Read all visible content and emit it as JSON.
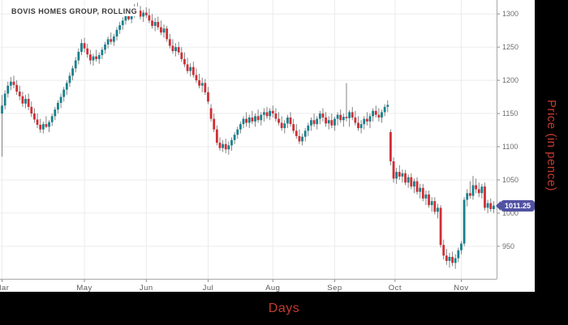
{
  "title": "BOVIS HOMES GROUP, ROLLING",
  "axis_titles": {
    "x": "Days",
    "y": "Price (in pence)"
  },
  "last_price_label": "1011.25",
  "colors": {
    "up": "#17818D",
    "down": "#D22D34",
    "wick": "#777777",
    "grid": "#ECECEC",
    "axis_border": "#A8A8A8",
    "tick": "#8A8A8A",
    "y_tick_text": "#6E6E6E",
    "x_tick_text": "#5A5A5A",
    "badge": "#5152A2",
    "axis_title_text": "#C43A30",
    "title_text": "#383838",
    "panel_bg": "#FFFFFF",
    "outer_bg": "#000000"
  },
  "chart_data": {
    "type": "candlestick",
    "title": "BOVIS HOMES GROUP, ROLLING",
    "xlabel": "Days",
    "ylabel": "Price (in pence)",
    "last_price": 1011.25,
    "ylim": [
      901,
      1321
    ],
    "y_ticks": [
      950,
      1000,
      1050,
      1100,
      1150,
      1200,
      1250,
      1300
    ],
    "x_ticks": [
      {
        "label": "Mar",
        "i": 0
      },
      {
        "label": "May",
        "i": 28
      },
      {
        "label": "Jun",
        "i": 49
      },
      {
        "label": "Jul",
        "i": 70
      },
      {
        "label": "Aug",
        "i": 92
      },
      {
        "label": "Sep",
        "i": 113
      },
      {
        "label": "Oct",
        "i": 133.5
      },
      {
        "label": "Nov",
        "i": 156
      }
    ],
    "grid": true,
    "ohlc": [
      [
        1150,
        1178,
        1085,
        1162
      ],
      [
        1162,
        1185,
        1156,
        1180
      ],
      [
        1180,
        1198,
        1174,
        1192
      ],
      [
        1192,
        1205,
        1185,
        1198
      ],
      [
        1198,
        1207,
        1188,
        1193
      ],
      [
        1193,
        1200,
        1178,
        1183
      ],
      [
        1183,
        1192,
        1170,
        1176
      ],
      [
        1176,
        1183,
        1160,
        1165
      ],
      [
        1165,
        1178,
        1158,
        1172
      ],
      [
        1172,
        1180,
        1155,
        1160
      ],
      [
        1160,
        1168,
        1145,
        1150
      ],
      [
        1150,
        1158,
        1136,
        1141
      ],
      [
        1141,
        1150,
        1128,
        1133
      ],
      [
        1133,
        1142,
        1121,
        1126
      ],
      [
        1126,
        1138,
        1120,
        1134
      ],
      [
        1134,
        1146,
        1128,
        1130
      ],
      [
        1130,
        1140,
        1122,
        1137
      ],
      [
        1137,
        1150,
        1131,
        1146
      ],
      [
        1146,
        1160,
        1140,
        1156
      ],
      [
        1156,
        1170,
        1150,
        1166
      ],
      [
        1166,
        1180,
        1158,
        1175
      ],
      [
        1175,
        1190,
        1168,
        1186
      ],
      [
        1186,
        1200,
        1178,
        1196
      ],
      [
        1196,
        1212,
        1190,
        1207
      ],
      [
        1207,
        1222,
        1200,
        1218
      ],
      [
        1218,
        1235,
        1212,
        1230
      ],
      [
        1230,
        1248,
        1224,
        1243
      ],
      [
        1243,
        1262,
        1238,
        1256
      ],
      [
        1256,
        1264,
        1242,
        1248
      ],
      [
        1248,
        1255,
        1234,
        1239
      ],
      [
        1239,
        1246,
        1224,
        1230
      ],
      [
        1230,
        1240,
        1222,
        1236
      ],
      [
        1236,
        1246,
        1228,
        1232
      ],
      [
        1232,
        1242,
        1225,
        1238
      ],
      [
        1238,
        1250,
        1232,
        1246
      ],
      [
        1246,
        1258,
        1240,
        1254
      ],
      [
        1254,
        1266,
        1248,
        1262
      ],
      [
        1262,
        1272,
        1254,
        1258
      ],
      [
        1258,
        1270,
        1252,
        1266
      ],
      [
        1266,
        1280,
        1260,
        1276
      ],
      [
        1276,
        1288,
        1270,
        1283
      ],
      [
        1283,
        1295,
        1276,
        1290
      ],
      [
        1290,
        1302,
        1284,
        1297
      ],
      [
        1297,
        1308,
        1290,
        1292
      ],
      [
        1292,
        1304,
        1286,
        1300
      ],
      [
        1300,
        1315,
        1294,
        1310
      ],
      [
        1310,
        1317,
        1300,
        1305
      ],
      [
        1305,
        1312,
        1292,
        1296
      ],
      [
        1296,
        1306,
        1288,
        1302
      ],
      [
        1302,
        1310,
        1294,
        1298
      ],
      [
        1298,
        1308,
        1286,
        1290
      ],
      [
        1290,
        1300,
        1278,
        1282
      ],
      [
        1282,
        1294,
        1274,
        1288
      ],
      [
        1288,
        1296,
        1276,
        1280
      ],
      [
        1280,
        1290,
        1268,
        1272
      ],
      [
        1272,
        1284,
        1264,
        1278
      ],
      [
        1278,
        1282,
        1258,
        1262
      ],
      [
        1262,
        1270,
        1248,
        1252
      ],
      [
        1252,
        1262,
        1240,
        1244
      ],
      [
        1244,
        1256,
        1236,
        1250
      ],
      [
        1250,
        1258,
        1238,
        1242
      ],
      [
        1242,
        1250,
        1228,
        1232
      ],
      [
        1232,
        1242,
        1220,
        1224
      ],
      [
        1224,
        1234,
        1210,
        1214
      ],
      [
        1214,
        1226,
        1206,
        1220
      ],
      [
        1220,
        1228,
        1204,
        1208
      ],
      [
        1208,
        1218,
        1196,
        1200
      ],
      [
        1200,
        1210,
        1188,
        1192
      ],
      [
        1192,
        1204,
        1182,
        1196
      ],
      [
        1196,
        1202,
        1178,
        1182
      ],
      [
        1182,
        1190,
        1164,
        1168
      ],
      [
        1158,
        1164,
        1138,
        1142
      ],
      [
        1142,
        1150,
        1122,
        1126
      ],
      [
        1126,
        1132,
        1102,
        1106
      ],
      [
        1106,
        1114,
        1094,
        1098
      ],
      [
        1098,
        1110,
        1092,
        1104
      ],
      [
        1104,
        1112,
        1090,
        1096
      ],
      [
        1096,
        1108,
        1088,
        1102
      ],
      [
        1102,
        1114,
        1094,
        1110
      ],
      [
        1110,
        1122,
        1104,
        1118
      ],
      [
        1118,
        1130,
        1112,
        1126
      ],
      [
        1126,
        1138,
        1120,
        1134
      ],
      [
        1134,
        1146,
        1128,
        1142
      ],
      [
        1142,
        1152,
        1130,
        1136
      ],
      [
        1136,
        1148,
        1128,
        1144
      ],
      [
        1144,
        1154,
        1134,
        1138
      ],
      [
        1138,
        1150,
        1130,
        1146
      ],
      [
        1146,
        1156,
        1136,
        1140
      ],
      [
        1140,
        1152,
        1132,
        1148
      ],
      [
        1148,
        1158,
        1138,
        1152
      ],
      [
        1152,
        1160,
        1142,
        1146
      ],
      [
        1146,
        1158,
        1140,
        1154
      ],
      [
        1154,
        1162,
        1144,
        1150
      ],
      [
        1150,
        1158,
        1138,
        1142
      ],
      [
        1142,
        1152,
        1132,
        1136
      ],
      [
        1136,
        1146,
        1124,
        1128
      ],
      [
        1128,
        1140,
        1120,
        1135
      ],
      [
        1135,
        1148,
        1128,
        1144
      ],
      [
        1144,
        1152,
        1130,
        1134
      ],
      [
        1134,
        1142,
        1120,
        1124
      ],
      [
        1124,
        1134,
        1112,
        1116
      ],
      [
        1116,
        1126,
        1104,
        1108
      ],
      [
        1108,
        1120,
        1102,
        1115
      ],
      [
        1115,
        1128,
        1108,
        1124
      ],
      [
        1124,
        1136,
        1116,
        1132
      ],
      [
        1132,
        1144,
        1124,
        1140
      ],
      [
        1140,
        1150,
        1130,
        1134
      ],
      [
        1134,
        1146,
        1126,
        1142
      ],
      [
        1142,
        1154,
        1134,
        1150
      ],
      [
        1150,
        1158,
        1138,
        1144
      ],
      [
        1144,
        1152,
        1130,
        1135
      ],
      [
        1135,
        1146,
        1126,
        1140
      ],
      [
        1140,
        1150,
        1128,
        1132
      ],
      [
        1132,
        1145,
        1124,
        1142
      ],
      [
        1142,
        1152,
        1132,
        1148
      ],
      [
        1148,
        1156,
        1136,
        1140
      ],
      [
        1140,
        1150,
        1130,
        1145
      ],
      [
        1145,
        1196,
        1138,
        1143
      ],
      [
        1143,
        1155,
        1130,
        1152
      ],
      [
        1152,
        1160,
        1140,
        1144
      ],
      [
        1144,
        1154,
        1132,
        1136
      ],
      [
        1136,
        1146,
        1124,
        1128
      ],
      [
        1128,
        1140,
        1120,
        1134
      ],
      [
        1134,
        1146,
        1126,
        1142
      ],
      [
        1142,
        1152,
        1132,
        1138
      ],
      [
        1138,
        1150,
        1128,
        1146
      ],
      [
        1146,
        1158,
        1138,
        1154
      ],
      [
        1154,
        1162,
        1144,
        1148
      ],
      [
        1148,
        1158,
        1138,
        1144
      ],
      [
        1144,
        1156,
        1136,
        1152
      ],
      [
        1152,
        1164,
        1146,
        1160
      ],
      [
        1160,
        1170,
        1152,
        1163
      ],
      [
        1122,
        1126,
        1072,
        1078
      ],
      [
        1078,
        1084,
        1046,
        1052
      ],
      [
        1052,
        1068,
        1044,
        1062
      ],
      [
        1062,
        1072,
        1050,
        1055
      ],
      [
        1055,
        1066,
        1046,
        1060
      ],
      [
        1060,
        1065,
        1042,
        1046
      ],
      [
        1046,
        1058,
        1038,
        1054
      ],
      [
        1054,
        1060,
        1036,
        1040
      ],
      [
        1040,
        1052,
        1030,
        1048
      ],
      [
        1048,
        1054,
        1028,
        1032
      ],
      [
        1032,
        1044,
        1022,
        1038
      ],
      [
        1038,
        1044,
        1018,
        1022
      ],
      [
        1022,
        1034,
        1012,
        1028
      ],
      [
        1028,
        1034,
        1008,
        1012
      ],
      [
        1012,
        1024,
        1002,
        1018
      ],
      [
        1018,
        1024,
        998,
        1002
      ],
      [
        1002,
        1014,
        992,
        1008
      ],
      [
        1008,
        1012,
        948,
        952
      ],
      [
        952,
        960,
        930,
        936
      ],
      [
        936,
        946,
        922,
        928
      ],
      [
        928,
        940,
        918,
        934
      ],
      [
        934,
        942,
        920,
        925
      ],
      [
        925,
        938,
        916,
        932
      ],
      [
        932,
        948,
        926,
        944
      ],
      [
        944,
        958,
        938,
        954
      ],
      [
        954,
        1024,
        950,
        1020
      ],
      [
        1020,
        1036,
        1010,
        1030
      ],
      [
        1030,
        1048,
        1022,
        1026
      ],
      [
        1026,
        1056,
        1020,
        1042
      ],
      [
        1042,
        1052,
        1030,
        1036
      ],
      [
        1036,
        1046,
        1024,
        1030
      ],
      [
        1030,
        1044,
        1022,
        1040
      ],
      [
        1040,
        1046,
        1004,
        1008
      ],
      [
        1008,
        1020,
        1000,
        1015
      ],
      [
        1015,
        1022,
        1002,
        1006
      ],
      [
        1006,
        1018,
        1000,
        1011.25
      ]
    ]
  }
}
